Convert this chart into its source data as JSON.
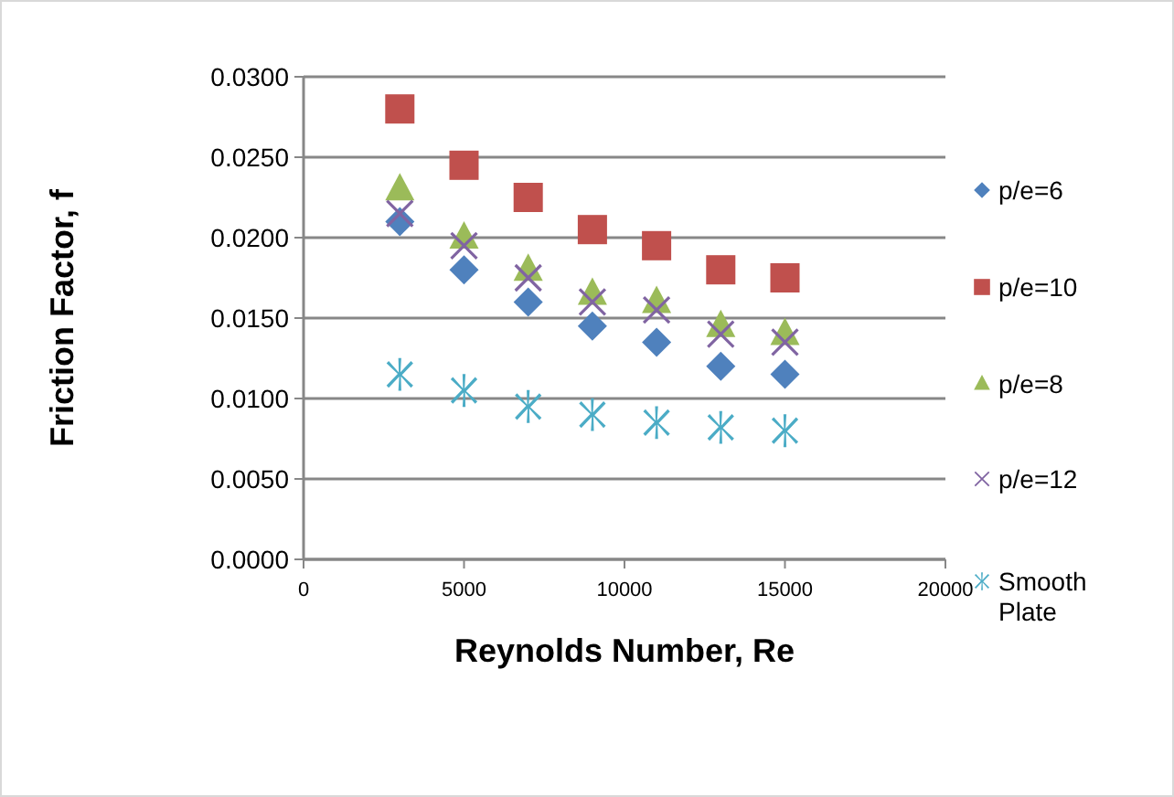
{
  "chart_data": {
    "type": "scatter",
    "xlabel": "Reynolds Number, Re",
    "ylabel": "Friction Factor, f",
    "x": [
      3000,
      5000,
      7000,
      9000,
      11000,
      13000,
      15000
    ],
    "xlim": [
      0,
      20000
    ],
    "xticks": [
      0,
      5000,
      10000,
      15000,
      20000
    ],
    "ylim": [
      0,
      0.03
    ],
    "yticks": [
      {
        "value": 0,
        "label": "0.0000"
      },
      {
        "value": 0.005,
        "label": "0.0050"
      },
      {
        "value": 0.01,
        "label": "0.0100"
      },
      {
        "value": 0.015,
        "label": "0.0150"
      },
      {
        "value": 0.02,
        "label": "0.0200"
      },
      {
        "value": 0.025,
        "label": "0.0250"
      },
      {
        "value": 0.03,
        "label": "0.0300"
      }
    ],
    "grid": "y",
    "legend": "right",
    "series": [
      {
        "name": "p/e=6",
        "color": "#4f81bd",
        "marker": "diamond",
        "values": [
          0.021,
          0.018,
          0.016,
          0.0145,
          0.0135,
          0.012,
          0.0115
        ]
      },
      {
        "name": "p/e=10",
        "color": "#c0504d",
        "marker": "square",
        "values": [
          0.028,
          0.0245,
          0.0225,
          0.0205,
          0.0195,
          0.018,
          0.0175
        ]
      },
      {
        "name": "p/e=8",
        "color": "#9bbb59",
        "marker": "triangle",
        "values": [
          0.023,
          0.02,
          0.018,
          0.0165,
          0.016,
          0.0145,
          0.014
        ]
      },
      {
        "name": "p/e=12",
        "color": "#8064a2",
        "marker": "cross",
        "values": [
          0.0215,
          0.0195,
          0.0175,
          0.016,
          0.0155,
          0.014,
          0.0135
        ]
      },
      {
        "name": "Smooth Plate",
        "color": "#4bacc6",
        "marker": "star",
        "values": [
          0.0115,
          0.0105,
          0.0095,
          0.009,
          0.0085,
          0.0082,
          0.008
        ]
      }
    ]
  }
}
